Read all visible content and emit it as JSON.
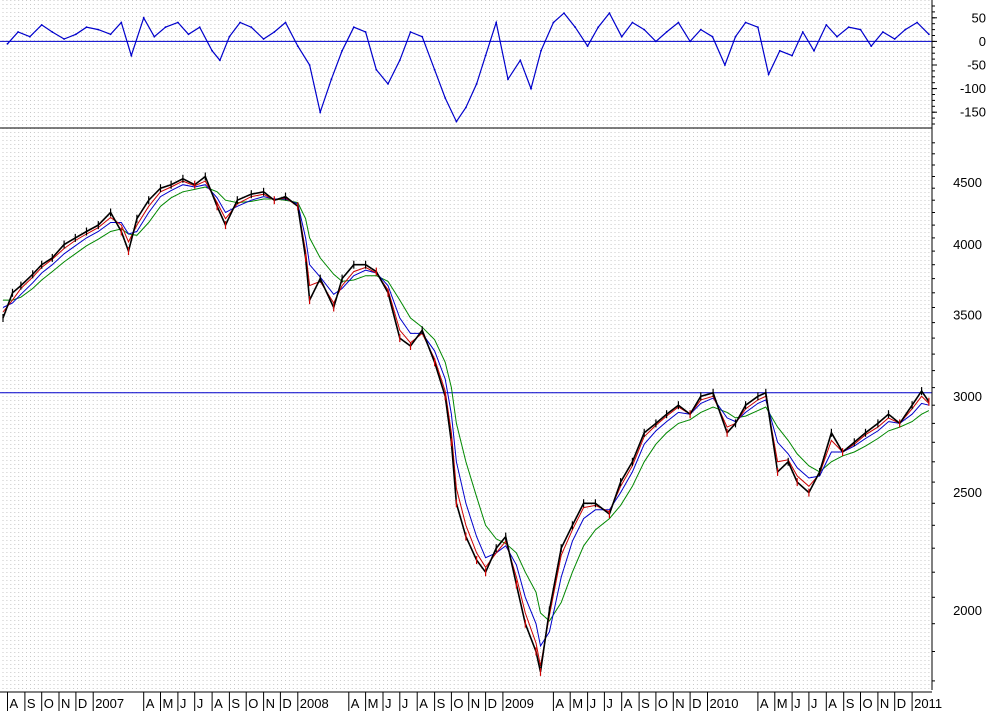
{
  "chart_data": [
    {
      "panel": "oscillator",
      "type": "line",
      "y_ticks": [
        50,
        0,
        -50,
        -100,
        -150
      ],
      "ylim": [
        -175,
        75
      ],
      "reference_line": 0,
      "series": [
        {
          "color": "#0000cc",
          "x": [
            "2006-08-01",
            "2006-08-20",
            "2006-09-10",
            "2006-10-01",
            "2006-10-20",
            "2006-11-10",
            "2006-12-01",
            "2006-12-20",
            "2007-01-10",
            "2007-02-01",
            "2007-02-20",
            "2007-03-10",
            "2007-04-01",
            "2007-04-20",
            "2007-05-10",
            "2007-06-01",
            "2007-06-20",
            "2007-07-10",
            "2007-08-01",
            "2007-08-15",
            "2007-09-01",
            "2007-09-20",
            "2007-10-10",
            "2007-11-01",
            "2007-11-20",
            "2007-12-10",
            "2008-01-01",
            "2008-01-22",
            "2008-02-10",
            "2008-03-01",
            "2008-03-20",
            "2008-04-10",
            "2008-05-01",
            "2008-05-20",
            "2008-06-10",
            "2008-07-01",
            "2008-07-20",
            "2008-08-10",
            "2008-09-01",
            "2008-09-20",
            "2008-10-10",
            "2008-10-27",
            "2008-11-15",
            "2008-12-01",
            "2008-12-20",
            "2009-01-10",
            "2009-02-01",
            "2009-02-20",
            "2009-03-10",
            "2009-04-01",
            "2009-04-20",
            "2009-05-10",
            "2009-06-01",
            "2009-06-20",
            "2009-07-10",
            "2009-08-01",
            "2009-08-20",
            "2009-09-10",
            "2009-10-01",
            "2009-10-20",
            "2009-11-10",
            "2009-12-01",
            "2009-12-20",
            "2010-01-10",
            "2010-02-01",
            "2010-02-20",
            "2010-03-10",
            "2010-04-01",
            "2010-04-20",
            "2010-05-10",
            "2010-06-01",
            "2010-06-20",
            "2010-07-10",
            "2010-08-01",
            "2010-08-20",
            "2010-09-10",
            "2010-10-01",
            "2010-10-20",
            "2010-11-10",
            "2010-12-01",
            "2010-12-20",
            "2011-01-10",
            "2011-01-31"
          ],
          "values": [
            -5,
            20,
            10,
            35,
            20,
            5,
            15,
            30,
            25,
            15,
            40,
            -30,
            50,
            10,
            30,
            40,
            15,
            30,
            -20,
            -40,
            10,
            40,
            30,
            5,
            20,
            40,
            -10,
            -50,
            -150,
            -80,
            -20,
            30,
            20,
            -60,
            -90,
            -40,
            20,
            10,
            -60,
            -120,
            -170,
            -140,
            -90,
            -30,
            40,
            -80,
            -40,
            -100,
            -20,
            40,
            60,
            30,
            -10,
            30,
            60,
            10,
            40,
            25,
            0,
            20,
            40,
            0,
            25,
            10,
            -50,
            10,
            40,
            30,
            -70,
            -20,
            -30,
            20,
            -20,
            35,
            10,
            30,
            25,
            -10,
            20,
            5,
            25,
            40,
            15
          ]
        }
      ]
    },
    {
      "panel": "price",
      "type": "line",
      "y_scale": "log",
      "y_ticks": [
        2000,
        2500,
        3000,
        3500,
        4000,
        4500
      ],
      "ylim": [
        1720,
        4950
      ],
      "reference_line": 3020,
      "x_labels": [
        "A",
        "S",
        "O",
        "N",
        "D",
        "2007",
        "A",
        "M",
        "J",
        "J",
        "A",
        "S",
        "O",
        "N",
        "D",
        "2008",
        "A",
        "M",
        "J",
        "J",
        "A",
        "S",
        "O",
        "N",
        "D",
        "2009",
        "A",
        "M",
        "J",
        "J",
        "A",
        "S",
        "O",
        "N",
        "D",
        "2010",
        "A",
        "M",
        "J",
        "J",
        "A",
        "S",
        "O",
        "N",
        "D",
        "2011"
      ],
      "x_label_dates": [
        "2006-08-01",
        "2006-09-01",
        "2006-10-01",
        "2006-11-01",
        "2006-12-01",
        "2007-01-01",
        "2007-04-01",
        "2007-05-01",
        "2007-06-01",
        "2007-07-01",
        "2007-08-01",
        "2007-09-01",
        "2007-10-01",
        "2007-11-01",
        "2007-12-01",
        "2008-01-01",
        "2008-04-01",
        "2008-05-01",
        "2008-06-01",
        "2008-07-01",
        "2008-08-01",
        "2008-09-01",
        "2008-10-01",
        "2008-11-01",
        "2008-12-01",
        "2009-01-01",
        "2009-04-01",
        "2009-05-01",
        "2009-06-01",
        "2009-07-01",
        "2009-08-01",
        "2009-09-01",
        "2009-10-01",
        "2009-11-01",
        "2009-12-01",
        "2010-01-01",
        "2010-04-01",
        "2010-05-01",
        "2010-06-01",
        "2010-07-01",
        "2010-08-01",
        "2010-09-01",
        "2010-10-01",
        "2010-11-01",
        "2010-12-01",
        "2011-01-01"
      ],
      "x": [
        "2006-07-24",
        "2006-08-10",
        "2006-08-25",
        "2006-09-15",
        "2006-10-01",
        "2006-10-20",
        "2006-11-10",
        "2006-11-30",
        "2006-12-20",
        "2007-01-10",
        "2007-02-01",
        "2007-02-20",
        "2007-03-05",
        "2007-03-20",
        "2007-04-10",
        "2007-05-01",
        "2007-05-20",
        "2007-06-10",
        "2007-07-01",
        "2007-07-20",
        "2007-08-10",
        "2007-08-25",
        "2007-09-15",
        "2007-10-10",
        "2007-11-01",
        "2007-11-20",
        "2007-12-10",
        "2008-01-01",
        "2008-01-15",
        "2008-01-22",
        "2008-02-10",
        "2008-03-05",
        "2008-03-20",
        "2008-04-10",
        "2008-05-01",
        "2008-05-20",
        "2008-06-10",
        "2008-07-01",
        "2008-07-20",
        "2008-08-10",
        "2008-09-01",
        "2008-09-20",
        "2008-10-01",
        "2008-10-10",
        "2008-10-27",
        "2008-11-15",
        "2008-12-01",
        "2008-12-20",
        "2009-01-06",
        "2009-01-25",
        "2009-02-10",
        "2009-03-01",
        "2009-03-09",
        "2009-03-25",
        "2009-04-15",
        "2009-05-05",
        "2009-05-25",
        "2009-06-15",
        "2009-07-10",
        "2009-07-30",
        "2009-08-20",
        "2009-09-10",
        "2009-10-01",
        "2009-10-20",
        "2009-11-10",
        "2009-12-01",
        "2009-12-20",
        "2010-01-11",
        "2010-02-05",
        "2010-02-20",
        "2010-03-10",
        "2010-04-01",
        "2010-04-15",
        "2010-05-06",
        "2010-05-25",
        "2010-06-10",
        "2010-07-01",
        "2010-07-20",
        "2010-08-10",
        "2010-08-30",
        "2010-09-20",
        "2010-10-10",
        "2010-11-01",
        "2010-11-20",
        "2010-12-10",
        "2011-01-01",
        "2011-01-18",
        "2011-01-31"
      ],
      "series": [
        {
          "color": "#000000",
          "values": [
            3480,
            3650,
            3700,
            3780,
            3850,
            3900,
            4000,
            4050,
            4100,
            4150,
            4250,
            4100,
            3950,
            4200,
            4350,
            4450,
            4480,
            4530,
            4480,
            4550,
            4300,
            4150,
            4350,
            4400,
            4420,
            4350,
            4380,
            4300,
            3900,
            3600,
            3750,
            3550,
            3750,
            3850,
            3850,
            3800,
            3650,
            3350,
            3300,
            3400,
            3200,
            3000,
            2750,
            2450,
            2300,
            2200,
            2150,
            2250,
            2300,
            2100,
            1950,
            1850,
            1780,
            2000,
            2250,
            2350,
            2450,
            2450,
            2400,
            2550,
            2650,
            2800,
            2850,
            2900,
            2950,
            2900,
            3000,
            3020,
            2800,
            2850,
            2950,
            3000,
            3020,
            2600,
            2650,
            2550,
            2500,
            2600,
            2800,
            2700,
            2750,
            2800,
            2850,
            2900,
            2850,
            2950,
            3030,
            2970
          ]
        },
        {
          "color": "#cc0000",
          "values": [
            3520,
            3600,
            3680,
            3760,
            3830,
            3890,
            3970,
            4030,
            4080,
            4130,
            4210,
            4150,
            4020,
            4150,
            4300,
            4420,
            4460,
            4510,
            4470,
            4510,
            4330,
            4200,
            4320,
            4380,
            4400,
            4350,
            4370,
            4300,
            3950,
            3700,
            3730,
            3580,
            3700,
            3800,
            3830,
            3790,
            3670,
            3400,
            3320,
            3380,
            3220,
            3030,
            2800,
            2520,
            2350,
            2230,
            2170,
            2230,
            2280,
            2130,
            1990,
            1880,
            1800,
            1980,
            2220,
            2330,
            2430,
            2440,
            2410,
            2530,
            2630,
            2780,
            2840,
            2890,
            2940,
            2900,
            2980,
            3000,
            2830,
            2850,
            2930,
            2980,
            3000,
            2650,
            2660,
            2580,
            2530,
            2590,
            2760,
            2700,
            2740,
            2790,
            2830,
            2880,
            2850,
            2930,
            3000,
            2960
          ]
        },
        {
          "color": "#0000cc",
          "values": [
            3550,
            3580,
            3640,
            3720,
            3790,
            3850,
            3930,
            3990,
            4050,
            4100,
            4170,
            4170,
            4080,
            4100,
            4250,
            4380,
            4430,
            4480,
            4460,
            4480,
            4370,
            4250,
            4300,
            4350,
            4380,
            4360,
            4360,
            4320,
            4050,
            3850,
            3760,
            3640,
            3680,
            3770,
            3810,
            3790,
            3700,
            3480,
            3380,
            3380,
            3270,
            3100,
            2900,
            2650,
            2450,
            2300,
            2210,
            2230,
            2260,
            2180,
            2050,
            1950,
            1870,
            1920,
            2130,
            2280,
            2380,
            2420,
            2420,
            2500,
            2600,
            2740,
            2810,
            2860,
            2910,
            2900,
            2960,
            2990,
            2880,
            2860,
            2910,
            2960,
            2980,
            2750,
            2690,
            2620,
            2570,
            2580,
            2700,
            2700,
            2730,
            2770,
            2810,
            2860,
            2850,
            2900,
            2960,
            2950
          ]
        },
        {
          "color": "#008800",
          "values": [
            3600,
            3600,
            3620,
            3680,
            3740,
            3800,
            3870,
            3930,
            3990,
            4040,
            4100,
            4120,
            4080,
            4070,
            4170,
            4300,
            4370,
            4420,
            4440,
            4460,
            4420,
            4350,
            4330,
            4340,
            4360,
            4360,
            4350,
            4330,
            4200,
            4050,
            3900,
            3780,
            3730,
            3740,
            3770,
            3770,
            3730,
            3600,
            3480,
            3420,
            3340,
            3200,
            3050,
            2850,
            2650,
            2480,
            2350,
            2290,
            2270,
            2230,
            2150,
            2070,
            1990,
            1960,
            2030,
            2150,
            2260,
            2330,
            2380,
            2440,
            2530,
            2650,
            2740,
            2800,
            2850,
            2870,
            2910,
            2940,
            2910,
            2880,
            2890,
            2920,
            2940,
            2830,
            2760,
            2690,
            2630,
            2600,
            2650,
            2680,
            2700,
            2730,
            2770,
            2810,
            2830,
            2860,
            2900,
            2920
          ]
        }
      ]
    }
  ]
}
